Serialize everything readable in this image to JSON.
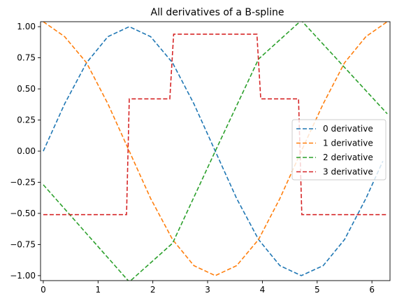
{
  "chart_data": {
    "type": "line",
    "title": "All derivatives of a B-spline",
    "xlabel": "",
    "ylabel": "",
    "xlim": [
      -0.05,
      6.33
    ],
    "ylim": [
      -1.04,
      1.04
    ],
    "xticks": [
      0,
      1,
      2,
      3,
      4,
      5,
      6
    ],
    "xtick_labels": [
      "0",
      "1",
      "2",
      "3",
      "4",
      "5",
      "6"
    ],
    "yticks": [
      -1.0,
      -0.75,
      -0.5,
      -0.25,
      0.0,
      0.25,
      0.5,
      0.75,
      1.0
    ],
    "ytick_labels": [
      "−1.00",
      "−0.75",
      "−0.50",
      "−0.25",
      "0.00",
      "0.25",
      "0.50",
      "0.75",
      "1.00"
    ],
    "grid": false,
    "legend_position": "center-right",
    "series": [
      {
        "name": "0 derivative",
        "color": "#1f77b4",
        "line_style": "dashed",
        "x": [
          0.0,
          0.39,
          0.79,
          1.18,
          1.57,
          1.96,
          2.36,
          2.75,
          3.14,
          3.53,
          3.93,
          4.32,
          4.71,
          5.11,
          5.5,
          5.89,
          6.2
        ],
        "y": [
          0.0,
          0.38,
          0.71,
          0.92,
          1.0,
          0.92,
          0.71,
          0.38,
          0.0,
          -0.38,
          -0.71,
          -0.92,
          -1.0,
          -0.92,
          -0.71,
          -0.38,
          -0.08
        ]
      },
      {
        "name": "1 derivative",
        "color": "#ff7f0e",
        "line_style": "dashed",
        "x": [
          0.0,
          0.39,
          0.79,
          1.18,
          1.57,
          1.96,
          2.36,
          2.75,
          3.14,
          3.53,
          3.93,
          4.32,
          4.71,
          5.11,
          5.5,
          5.89,
          6.28
        ],
        "y": [
          1.04,
          0.92,
          0.71,
          0.38,
          0.0,
          -0.38,
          -0.71,
          -0.92,
          -1.0,
          -0.92,
          -0.71,
          -0.38,
          0.0,
          0.38,
          0.71,
          0.92,
          1.04
        ]
      },
      {
        "name": "2 derivative",
        "color": "#2ca02c",
        "line_style": "dashed",
        "x": [
          0.0,
          1.57,
          2.36,
          3.14,
          3.93,
          4.71,
          6.28
        ],
        "y": [
          -0.27,
          -1.05,
          -0.74,
          0.0,
          0.74,
          1.05,
          0.3
        ]
      },
      {
        "name": "3 derivative",
        "color": "#d62728",
        "line_style": "dashed",
        "x": [
          0.0,
          1.52,
          1.57,
          2.31,
          2.38,
          3.9,
          3.97,
          4.66,
          4.72,
          6.28
        ],
        "y": [
          -0.51,
          -0.51,
          0.42,
          0.42,
          0.94,
          0.94,
          0.42,
          0.42,
          -0.51,
          -0.51
        ]
      }
    ]
  }
}
